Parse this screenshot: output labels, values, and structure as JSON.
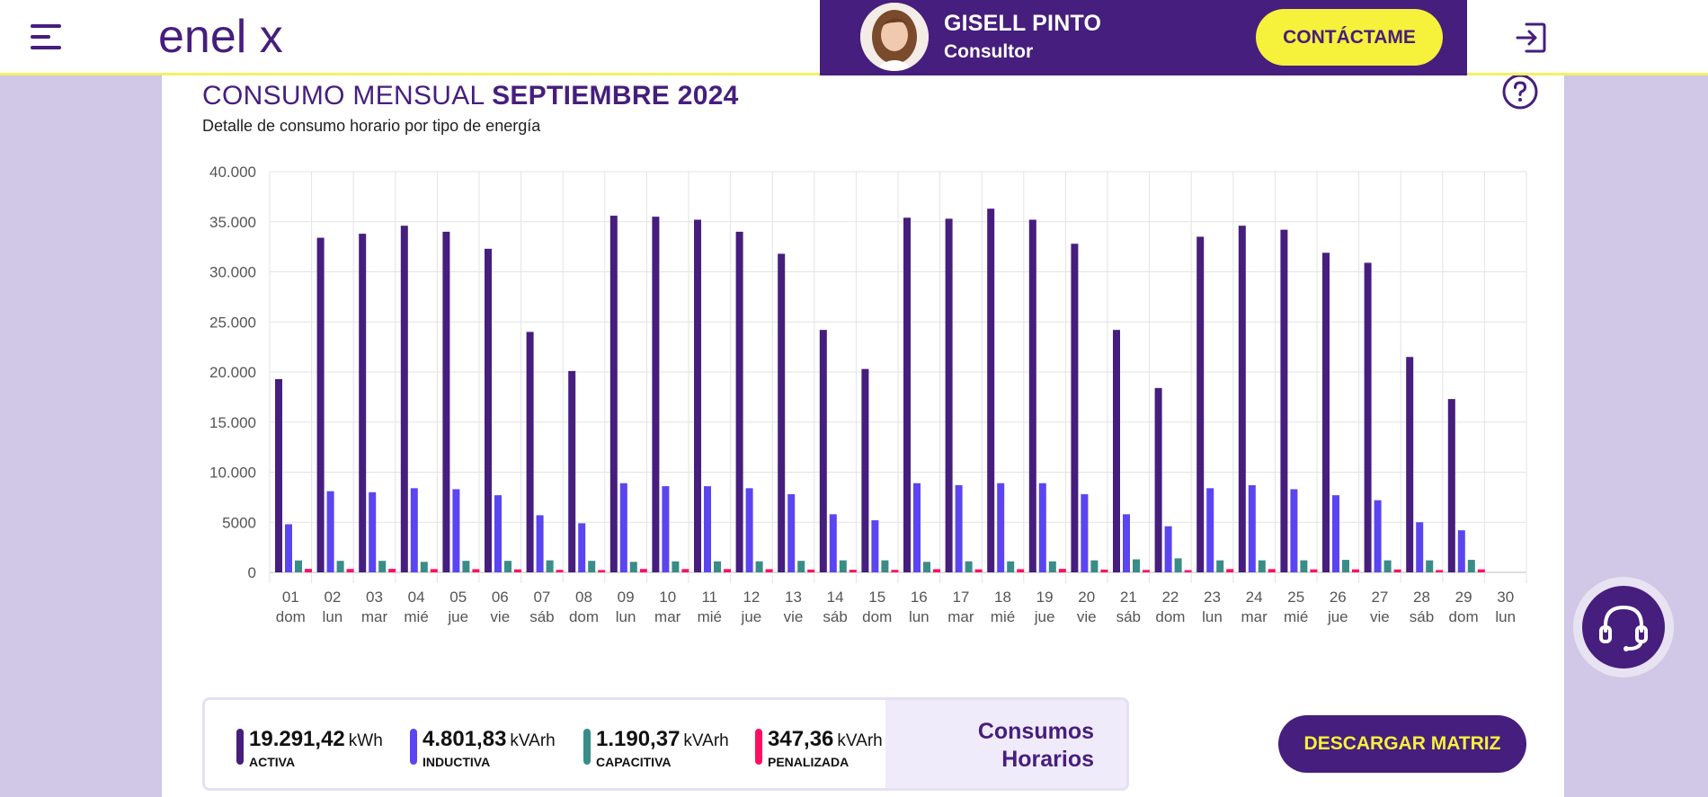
{
  "header": {
    "brand": "enel x",
    "consultant": {
      "name": "GISELL PINTO",
      "role": "Consultor"
    },
    "contact_label": "CONTÁCTAME"
  },
  "page": {
    "title_prefix": "CONSUMO MENSUAL",
    "title_period": "SEPTIEMBRE 2024",
    "subtitle": "Detalle de consumo horario por tipo de energía"
  },
  "colors": {
    "brand": "#461e7d",
    "activa": "#461e7d",
    "inductiva": "#5b45f0",
    "capacitiva": "#3a8c87",
    "penalizada": "#ff0f64",
    "accent_yellow": "#f6f13b"
  },
  "chart_data": {
    "type": "bar",
    "title": "",
    "xlabel": "",
    "ylabel": "",
    "ylim": [
      0,
      40000
    ],
    "yticks": [
      0,
      5000,
      10000,
      15000,
      20000,
      25000,
      30000,
      35000,
      40000
    ],
    "ytick_labels": [
      "0",
      "5000",
      "10.000",
      "15.000",
      "20.000",
      "25.000",
      "30.000",
      "35.000",
      "40.000"
    ],
    "grid": true,
    "categories": [
      "01",
      "02",
      "03",
      "04",
      "05",
      "06",
      "07",
      "08",
      "09",
      "10",
      "11",
      "12",
      "13",
      "14",
      "15",
      "16",
      "17",
      "18",
      "19",
      "20",
      "21",
      "22",
      "23",
      "24",
      "25",
      "26",
      "27",
      "28",
      "29",
      "30"
    ],
    "weekdays": [
      "dom",
      "lun",
      "mar",
      "mié",
      "jue",
      "vie",
      "sáb",
      "dom",
      "lun",
      "mar",
      "mié",
      "jue",
      "vie",
      "sáb",
      "dom",
      "lun",
      "mar",
      "mié",
      "jue",
      "vie",
      "sáb",
      "dom",
      "lun",
      "mar",
      "mié",
      "jue",
      "vie",
      "sáb",
      "dom",
      "lun"
    ],
    "series": [
      {
        "name": "ACTIVA",
        "values": [
          19291,
          33400,
          33800,
          34600,
          34000,
          32300,
          24000,
          20100,
          35600,
          35500,
          35200,
          34000,
          31800,
          24200,
          20300,
          35400,
          35300,
          36300,
          35200,
          32800,
          24200,
          18400,
          33500,
          34600,
          34200,
          31900,
          30900,
          21500,
          17300,
          0
        ]
      },
      {
        "name": "INDUCTIVA",
        "values": [
          4802,
          8100,
          8000,
          8400,
          8300,
          7700,
          5700,
          4900,
          8900,
          8600,
          8600,
          8400,
          7800,
          5800,
          5200,
          8900,
          8700,
          8900,
          8900,
          7800,
          5800,
          4600,
          8400,
          8700,
          8300,
          7700,
          7200,
          5000,
          4200,
          0
        ]
      },
      {
        "name": "CAPACITIVA",
        "values": [
          1190,
          1150,
          1150,
          1050,
          1150,
          1150,
          1200,
          1150,
          1050,
          1100,
          1100,
          1100,
          1150,
          1200,
          1200,
          1050,
          1100,
          1100,
          1100,
          1200,
          1300,
          1400,
          1200,
          1200,
          1200,
          1250,
          1200,
          1200,
          1250,
          0
        ]
      },
      {
        "name": "PENALIZADA",
        "values": [
          347,
          340,
          350,
          330,
          320,
          300,
          250,
          230,
          340,
          330,
          330,
          320,
          280,
          260,
          250,
          320,
          300,
          320,
          350,
          280,
          240,
          220,
          330,
          330,
          300,
          300,
          290,
          230,
          300,
          0
        ]
      }
    ]
  },
  "summary": {
    "items": [
      {
        "value": "19.291,42",
        "unit": "kWh",
        "name": "ACTIVA"
      },
      {
        "value": "4.801,83",
        "unit": "kVArh",
        "name": "INDUCTIVA"
      },
      {
        "value": "1.190,37",
        "unit": "kVArh",
        "name": "CAPACITIVA"
      },
      {
        "value": "347,36",
        "unit": "kVArh",
        "name": "PENALIZADA"
      }
    ],
    "side_label": "Consumos Horarios"
  },
  "actions": {
    "download_label": "DESCARGAR MATRIZ"
  },
  "icons": {
    "menu": "hamburger-menu-icon",
    "logout": "logout-icon",
    "help": "help-icon",
    "support": "headset-icon"
  }
}
